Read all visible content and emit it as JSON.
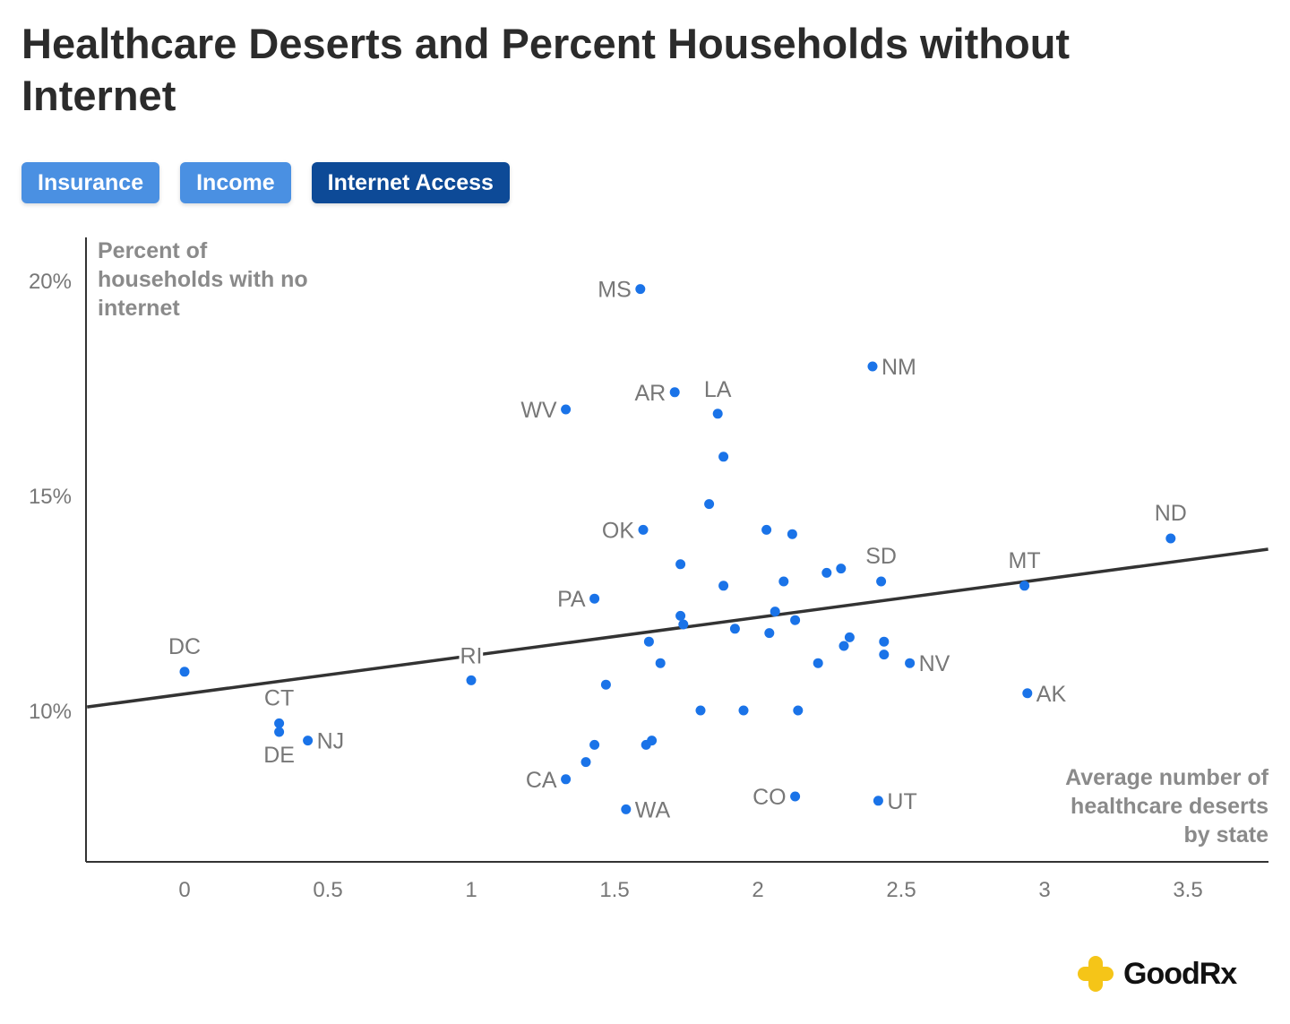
{
  "title": "Healthcare Deserts and Percent Households without Internet",
  "buttons": [
    {
      "label": "Insurance",
      "active": false
    },
    {
      "label": "Income",
      "active": false
    },
    {
      "label": "Internet Access",
      "active": true
    }
  ],
  "colors": {
    "point": "#1a73e8",
    "trend": "#333333",
    "button": "#4a90e2",
    "button_active": "#0d4a97",
    "logo": "#f5c518"
  },
  "brand": "GoodRx",
  "chart_data": {
    "type": "scatter",
    "title": "Healthcare Deserts and Percent Households without Internet",
    "xlabel": "Average number of healthcare deserts by state",
    "ylabel": "Percent of households with no internet",
    "xlabel_lines": [
      "Average number of",
      "healthcare deserts",
      "by state"
    ],
    "ylabel_lines": [
      "Percent of",
      "households with no",
      "internet"
    ],
    "xlim": [
      -0.34,
      3.78
    ],
    "ylim": [
      6.48,
      21
    ],
    "x_ticks": [
      0,
      0.5,
      1,
      1.5,
      2,
      2.5,
      3,
      3.5
    ],
    "x_tick_labels": [
      "0",
      "0.5",
      "1",
      "1.5",
      "2",
      "2.5",
      "3",
      "3.5"
    ],
    "y_ticks": [
      10,
      15,
      20
    ],
    "y_tick_labels": [
      "10%",
      "15%",
      "20%"
    ],
    "grid": false,
    "trendline": {
      "x": [
        -0.34,
        3.78
      ],
      "y": [
        10.08,
        13.75
      ]
    },
    "points": [
      {
        "label": "MS",
        "x": 1.59,
        "y": 19.8
      },
      {
        "label": "NM",
        "x": 2.4,
        "y": 18.0
      },
      {
        "label": "AR",
        "x": 1.71,
        "y": 17.4
      },
      {
        "label": "LA",
        "x": 1.86,
        "y": 16.9
      },
      {
        "label": "WV",
        "x": 1.33,
        "y": 17.0
      },
      {
        "x": 1.88,
        "y": 15.9
      },
      {
        "x": 1.83,
        "y": 14.8
      },
      {
        "label": "OK",
        "x": 1.6,
        "y": 14.2
      },
      {
        "x": 2.03,
        "y": 14.2
      },
      {
        "x": 2.12,
        "y": 14.1
      },
      {
        "x": 1.73,
        "y": 13.4
      },
      {
        "x": 2.24,
        "y": 13.2
      },
      {
        "x": 2.29,
        "y": 13.3
      },
      {
        "label": "SD",
        "x": 2.43,
        "y": 13.0
      },
      {
        "label": "MT",
        "x": 2.93,
        "y": 12.9
      },
      {
        "label": "ND",
        "x": 3.44,
        "y": 14.0
      },
      {
        "x": 1.88,
        "y": 12.9
      },
      {
        "x": 2.09,
        "y": 13.0
      },
      {
        "label": "PA",
        "x": 1.43,
        "y": 12.6
      },
      {
        "x": 2.06,
        "y": 12.3
      },
      {
        "x": 1.73,
        "y": 12.2
      },
      {
        "x": 1.74,
        "y": 12.0
      },
      {
        "x": 2.13,
        "y": 12.1
      },
      {
        "x": 1.92,
        "y": 11.9
      },
      {
        "x": 2.04,
        "y": 11.8
      },
      {
        "x": 1.62,
        "y": 11.6
      },
      {
        "x": 2.32,
        "y": 11.7
      },
      {
        "x": 2.3,
        "y": 11.5
      },
      {
        "x": 2.44,
        "y": 11.6
      },
      {
        "x": 2.44,
        "y": 11.3
      },
      {
        "label": "NV",
        "x": 2.53,
        "y": 11.1
      },
      {
        "x": 1.66,
        "y": 11.1
      },
      {
        "x": 2.21,
        "y": 11.1
      },
      {
        "label": "DC",
        "x": 0.0,
        "y": 10.9
      },
      {
        "label": "RI",
        "x": 1.0,
        "y": 10.7
      },
      {
        "x": 1.47,
        "y": 10.6
      },
      {
        "label": "AK",
        "x": 2.94,
        "y": 10.4
      },
      {
        "x": 1.8,
        "y": 10.0
      },
      {
        "x": 1.95,
        "y": 10.0
      },
      {
        "x": 2.14,
        "y": 10.0
      },
      {
        "label": "CT",
        "x": 0.33,
        "y": 9.7
      },
      {
        "label": "DE",
        "x": 0.33,
        "y": 9.5
      },
      {
        "label": "NJ",
        "x": 0.43,
        "y": 9.3
      },
      {
        "x": 1.43,
        "y": 9.2
      },
      {
        "x": 1.61,
        "y": 9.2
      },
      {
        "x": 1.63,
        "y": 9.3
      },
      {
        "x": 1.4,
        "y": 8.8
      },
      {
        "label": "CA",
        "x": 1.33,
        "y": 8.4
      },
      {
        "label": "CO",
        "x": 2.13,
        "y": 8.0
      },
      {
        "label": "UT",
        "x": 2.42,
        "y": 7.9
      },
      {
        "label": "WA",
        "x": 1.54,
        "y": 7.7
      }
    ]
  }
}
